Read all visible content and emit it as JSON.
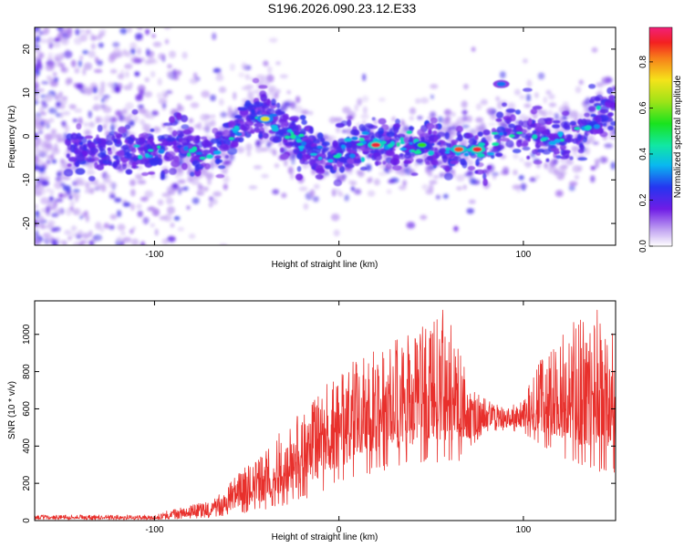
{
  "title": "S196.2026.090.23.12.E33",
  "chart_data": [
    {
      "type": "heatmap",
      "xlabel": "Height of straight line (km)",
      "ylabel": "Frequency (Hz)",
      "xlim": [
        -165,
        150
      ],
      "ylim": [
        -25,
        25
      ],
      "xticks": [
        -100,
        0,
        100
      ],
      "yticks": [
        -20,
        -10,
        0,
        10,
        20
      ],
      "colorbar": {
        "label": "Normalized spectral amplitude",
        "range": [
          0,
          0.95
        ],
        "ticks": [
          0.0,
          0.2,
          0.4,
          0.6,
          0.8
        ]
      },
      "ridge": [
        {
          "x": -165,
          "f": -4
        },
        {
          "x": -140,
          "f": -3
        },
        {
          "x": -120,
          "f": -3
        },
        {
          "x": -100,
          "f": -3
        },
        {
          "x": -85,
          "f": -2
        },
        {
          "x": -70,
          "f": -5
        },
        {
          "x": -60,
          "f": 0
        },
        {
          "x": -50,
          "f": 4
        },
        {
          "x": -40,
          "f": 5
        },
        {
          "x": -30,
          "f": 1
        },
        {
          "x": -20,
          "f": -2
        },
        {
          "x": -10,
          "f": -5
        },
        {
          "x": 0,
          "f": -4
        },
        {
          "x": 10,
          "f": -2
        },
        {
          "x": 20,
          "f": -2
        },
        {
          "x": 40,
          "f": -2
        },
        {
          "x": 60,
          "f": -3
        },
        {
          "x": 75,
          "f": -3
        },
        {
          "x": 85,
          "f": -2
        },
        {
          "x": 88,
          "f": 2
        },
        {
          "x": 100,
          "f": 1
        },
        {
          "x": 115,
          "f": -1
        },
        {
          "x": 130,
          "f": 0
        },
        {
          "x": 140,
          "f": 4
        },
        {
          "x": 150,
          "f": 6
        }
      ],
      "hotspots": [
        {
          "x": 20,
          "f": -2,
          "amp": 0.9
        },
        {
          "x": 65,
          "f": -3,
          "amp": 0.85
        },
        {
          "x": 75,
          "f": -3,
          "amp": 0.9
        },
        {
          "x": -40,
          "f": 4,
          "amp": 0.7
        },
        {
          "x": 45,
          "f": -2,
          "amp": 0.55
        },
        {
          "x": 88,
          "f": 12,
          "amp": 0.3
        }
      ]
    },
    {
      "type": "line",
      "xlabel": "Height of straight line (km)",
      "ylabel": "SNR (10 * v/v)",
      "xlim": [
        -165,
        150
      ],
      "ylim": [
        0,
        1180
      ],
      "xticks": [
        -100,
        0,
        100
      ],
      "yticks": [
        0,
        200,
        400,
        600,
        800,
        1000
      ],
      "series": [
        {
          "name": "SNR",
          "color": "#e8302c",
          "envelope": {
            "x": [
              -165,
              -100,
              -85,
              -70,
              -60,
              -50,
              -40,
              -30,
              -20,
              -10,
              0,
              10,
              20,
              30,
              40,
              50,
              60,
              65,
              70,
              80,
              90,
              100,
              110,
              120,
              130,
              140,
              150
            ],
            "lower": [
              5,
              5,
              10,
              15,
              30,
              40,
              60,
              80,
              110,
              150,
              200,
              230,
              260,
              280,
              300,
              320,
              300,
              320,
              380,
              480,
              480,
              470,
              400,
              350,
              280,
              260,
              250
            ],
            "upper": [
              30,
              30,
              80,
              100,
              200,
              300,
              380,
              500,
              600,
              700,
              800,
              880,
              950,
              980,
              1000,
              1100,
              1150,
              1000,
              720,
              650,
              600,
              650,
              900,
              1000,
              1120,
              1180,
              1000
            ]
          }
        }
      ]
    }
  ]
}
